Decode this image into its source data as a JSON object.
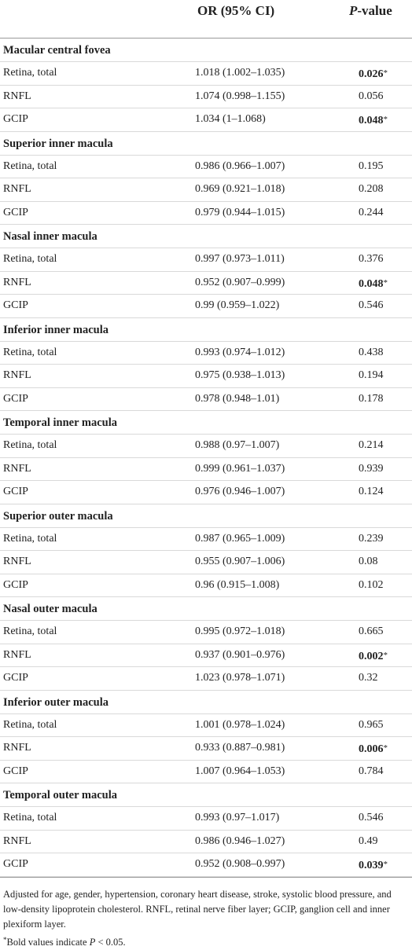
{
  "header": {
    "or_label": "OR (95% CI)",
    "p_label_italic": "P",
    "p_label_rest": "-value"
  },
  "groups": [
    {
      "title": "Macular central fovea",
      "rows": [
        {
          "name": "Retina, total",
          "or": "1.018 (1.002–1.035)",
          "p": "0.026",
          "sig": true
        },
        {
          "name": "RNFL",
          "or": "1.074 (0.998–1.155)",
          "p": "0.056",
          "sig": false
        },
        {
          "name": "GCIP",
          "or": "1.034 (1–1.068)",
          "p": "0.048",
          "sig": true
        }
      ]
    },
    {
      "title": "Superior inner macula",
      "rows": [
        {
          "name": "Retina, total",
          "or": "0.986 (0.966–1.007)",
          "p": "0.195",
          "sig": false
        },
        {
          "name": "RNFL",
          "or": "0.969 (0.921–1.018)",
          "p": "0.208",
          "sig": false
        },
        {
          "name": "GCIP",
          "or": "0.979 (0.944–1.015)",
          "p": "0.244",
          "sig": false
        }
      ]
    },
    {
      "title": "Nasal inner macula",
      "rows": [
        {
          "name": "Retina, total",
          "or": "0.997 (0.973–1.011)",
          "p": "0.376",
          "sig": false
        },
        {
          "name": "RNFL",
          "or": "0.952 (0.907–0.999)",
          "p": "0.048",
          "sig": true
        },
        {
          "name": "GCIP",
          "or": "0.99 (0.959–1.022)",
          "p": "0.546",
          "sig": false
        }
      ]
    },
    {
      "title": "Inferior inner macula",
      "rows": [
        {
          "name": "Retina, total",
          "or": "0.993 (0.974–1.012)",
          "p": "0.438",
          "sig": false
        },
        {
          "name": "RNFL",
          "or": "0.975 (0.938–1.013)",
          "p": "0.194",
          "sig": false
        },
        {
          "name": "GCIP",
          "or": "0.978 (0.948–1.01)",
          "p": "0.178",
          "sig": false
        }
      ]
    },
    {
      "title": "Temporal inner macula",
      "rows": [
        {
          "name": "Retina, total",
          "or": "0.988 (0.97–1.007)",
          "p": "0.214",
          "sig": false
        },
        {
          "name": "RNFL",
          "or": "0.999 (0.961–1.037)",
          "p": "0.939",
          "sig": false
        },
        {
          "name": "GCIP",
          "or": "0.976 (0.946–1.007)",
          "p": "0.124",
          "sig": false
        }
      ]
    },
    {
      "title": "Superior outer macula",
      "rows": [
        {
          "name": "Retina, total",
          "or": "0.987 (0.965–1.009)",
          "p": "0.239",
          "sig": false
        },
        {
          "name": "RNFL",
          "or": "0.955 (0.907–1.006)",
          "p": "0.08",
          "sig": false
        },
        {
          "name": "GCIP",
          "or": "0.96 (0.915–1.008)",
          "p": "0.102",
          "sig": false
        }
      ]
    },
    {
      "title": "Nasal outer macula",
      "rows": [
        {
          "name": "Retina, total",
          "or": "0.995 (0.972–1.018)",
          "p": "0.665",
          "sig": false
        },
        {
          "name": "RNFL",
          "or": "0.937 (0.901–0.976)",
          "p": "0.002",
          "sig": true
        },
        {
          "name": "GCIP",
          "or": "1.023 (0.978–1.071)",
          "p": "0.32",
          "sig": false
        }
      ]
    },
    {
      "title": "Inferior outer macula",
      "rows": [
        {
          "name": "Retina, total",
          "or": "1.001 (0.978–1.024)",
          "p": "0.965",
          "sig": false
        },
        {
          "name": "RNFL",
          "or": "0.933 (0.887–0.981)",
          "p": "0.006",
          "sig": true
        },
        {
          "name": "GCIP",
          "or": "1.007 (0.964–1.053)",
          "p": "0.784",
          "sig": false
        }
      ]
    },
    {
      "title": "Temporal outer macula",
      "rows": [
        {
          "name": "Retina, total",
          "or": "0.993 (0.97–1.017)",
          "p": "0.546",
          "sig": false
        },
        {
          "name": "RNFL",
          "or": "0.986 (0.946–1.027)",
          "p": "0.49",
          "sig": false
        },
        {
          "name": "GCIP",
          "or": "0.952 (0.908–0.997)",
          "p": "0.039",
          "sig": true
        }
      ]
    }
  ],
  "significance_marker": "*",
  "footnote": {
    "adjusted": "Adjusted for age, gender, hypertension, coronary heart disease, stroke, systolic blood pressure, and low-density lipoprotein cholesterol. RNFL, retinal nerve fiber layer; GCIP, ganglion cell and inner plexiform layer.",
    "bold_note_prefix": "Bold values indicate ",
    "bold_note_italic": "P",
    "bold_note_suffix": " < 0.05."
  }
}
